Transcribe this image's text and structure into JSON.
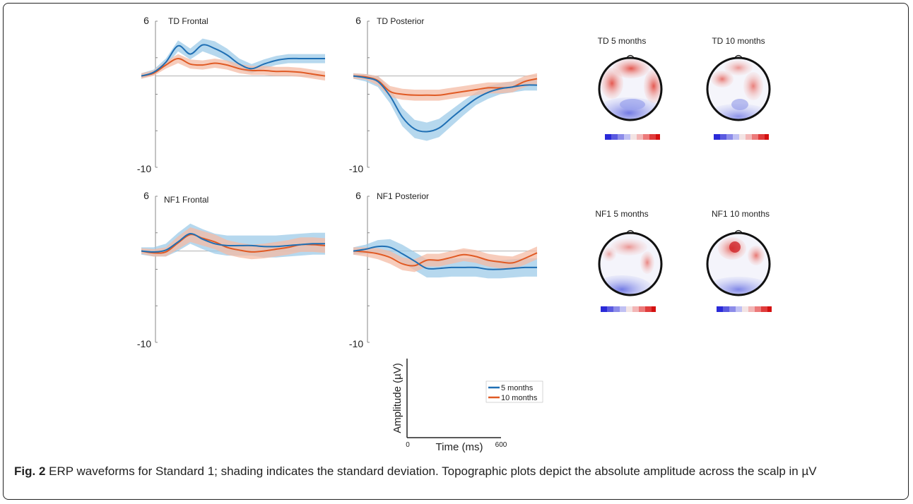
{
  "figure": {
    "caption_label": "Fig. 2",
    "caption_text": "ERP waveforms for Standard 1; shading indicates the standard deviation. Topographic plots depict the absolute amplitude across the scalp in µV"
  },
  "colors": {
    "five_months": "#1f6fb4",
    "five_months_band": "#9ecbe8",
    "ten_months": "#e05a24",
    "ten_months_band": "#f4bba4",
    "axis": "#888888"
  },
  "chart_data": [
    {
      "type": "line",
      "title": "TD Frontal",
      "ylim": [
        -10,
        6
      ],
      "tick_labels": [
        "6",
        "-10"
      ],
      "series": [
        {
          "name": "5 months",
          "x": [
            0,
            40,
            80,
            120,
            160,
            200,
            240,
            280,
            320,
            360,
            400,
            440,
            480,
            520,
            560,
            600
          ],
          "y": [
            0,
            0.4,
            1.5,
            3.3,
            2.4,
            3.4,
            3.0,
            2.3,
            1.3,
            0.8,
            1.3,
            1.7,
            1.9,
            1.9,
            1.9,
            1.9
          ],
          "sd": [
            0.3,
            0.3,
            0.4,
            0.6,
            0.6,
            0.7,
            0.8,
            0.7,
            0.6,
            0.5,
            0.5,
            0.5,
            0.5,
            0.5,
            0.5,
            0.5
          ]
        },
        {
          "name": "10 months",
          "x": [
            0,
            40,
            80,
            120,
            160,
            200,
            240,
            280,
            320,
            360,
            400,
            440,
            480,
            520,
            560,
            600
          ],
          "y": [
            0,
            0.3,
            1.2,
            1.9,
            1.3,
            1.2,
            1.4,
            1.2,
            0.8,
            0.6,
            0.6,
            0.5,
            0.5,
            0.4,
            0.2,
            0.0
          ],
          "sd": [
            0.3,
            0.3,
            0.4,
            0.5,
            0.5,
            0.5,
            0.5,
            0.5,
            0.5,
            0.5,
            0.5,
            0.5,
            0.5,
            0.5,
            0.5,
            0.5
          ]
        }
      ]
    },
    {
      "type": "line",
      "title": "TD Posterior",
      "ylim": [
        -10,
        6
      ],
      "tick_labels": [
        "6",
        "-10"
      ],
      "series": [
        {
          "name": "5 months",
          "x": [
            0,
            40,
            80,
            120,
            160,
            200,
            240,
            280,
            320,
            360,
            400,
            440,
            480,
            520,
            560,
            600
          ],
          "y": [
            0,
            -0.2,
            -0.6,
            -2.2,
            -4.5,
            -5.8,
            -6.1,
            -5.7,
            -4.6,
            -3.5,
            -2.5,
            -1.8,
            -1.4,
            -1.2,
            -1.0,
            -1.0
          ],
          "sd": [
            0.3,
            0.4,
            0.6,
            0.8,
            1.0,
            1.0,
            1.0,
            1.0,
            0.9,
            0.8,
            0.7,
            0.7,
            0.6,
            0.6,
            0.6,
            0.6
          ]
        },
        {
          "name": "10 months",
          "x": [
            0,
            40,
            80,
            120,
            160,
            200,
            240,
            280,
            320,
            360,
            400,
            440,
            480,
            520,
            560,
            600
          ],
          "y": [
            0,
            -0.1,
            -0.5,
            -1.7,
            -2.0,
            -2.1,
            -2.1,
            -2.1,
            -1.9,
            -1.7,
            -1.5,
            -1.3,
            -1.3,
            -1.2,
            -0.6,
            -0.3
          ],
          "sd": [
            0.3,
            0.3,
            0.5,
            0.6,
            0.6,
            0.6,
            0.6,
            0.6,
            0.6,
            0.6,
            0.6,
            0.6,
            0.6,
            0.6,
            0.6,
            0.6
          ]
        }
      ]
    },
    {
      "type": "line",
      "title": "NF1 Frontal",
      "ylim": [
        -10,
        6
      ],
      "tick_labels": [
        "6",
        "-10"
      ],
      "series": [
        {
          "name": "5 months",
          "x": [
            0,
            40,
            80,
            120,
            160,
            200,
            240,
            280,
            320,
            360,
            400,
            440,
            480,
            520,
            560,
            600
          ],
          "y": [
            0,
            -0.1,
            0.1,
            1.0,
            1.9,
            1.3,
            0.8,
            0.6,
            0.6,
            0.6,
            0.5,
            0.5,
            0.6,
            0.7,
            0.8,
            0.8
          ],
          "sd": [
            0.4,
            0.5,
            0.7,
            1.0,
            1.1,
            1.1,
            1.1,
            1.1,
            1.1,
            1.1,
            1.2,
            1.2,
            1.2,
            1.2,
            1.2,
            1.2
          ]
        },
        {
          "name": "10 months",
          "x": [
            0,
            40,
            80,
            120,
            160,
            200,
            240,
            280,
            320,
            360,
            400,
            440,
            480,
            520,
            560,
            600
          ],
          "y": [
            0,
            -0.2,
            -0.1,
            0.9,
            1.8,
            1.4,
            1.0,
            0.4,
            0.1,
            -0.1,
            0.0,
            0.2,
            0.4,
            0.7,
            0.7,
            0.6
          ],
          "sd": [
            0.3,
            0.4,
            0.5,
            0.7,
            0.8,
            0.8,
            0.8,
            0.8,
            0.8,
            0.8,
            0.8,
            0.8,
            0.8,
            0.8,
            0.8,
            0.8
          ]
        }
      ]
    },
    {
      "type": "line",
      "title": "NF1 Posterior",
      "ylim": [
        -10,
        6
      ],
      "tick_labels": [
        "6",
        "-10"
      ],
      "series": [
        {
          "name": "5 months",
          "x": [
            0,
            40,
            80,
            120,
            160,
            200,
            240,
            280,
            320,
            360,
            400,
            440,
            480,
            520,
            560,
            600
          ],
          "y": [
            0,
            0.2,
            0.5,
            0.4,
            -0.3,
            -1.1,
            -1.9,
            -1.9,
            -1.8,
            -1.8,
            -1.8,
            -2.0,
            -2.0,
            -1.9,
            -1.8,
            -1.8
          ],
          "sd": [
            0.4,
            0.5,
            0.7,
            0.9,
            1.0,
            1.0,
            1.0,
            1.0,
            1.0,
            1.0,
            1.0,
            1.0,
            1.0,
            1.0,
            1.0,
            1.0
          ]
        },
        {
          "name": "10 months",
          "x": [
            0,
            40,
            80,
            120,
            160,
            200,
            240,
            280,
            320,
            360,
            400,
            440,
            480,
            520,
            560,
            600
          ],
          "y": [
            0,
            -0.1,
            -0.3,
            -0.7,
            -1.4,
            -1.6,
            -1.0,
            -1.0,
            -0.7,
            -0.4,
            -0.6,
            -1.0,
            -1.2,
            -1.3,
            -0.8,
            -0.2
          ],
          "sd": [
            0.4,
            0.5,
            0.6,
            0.7,
            0.7,
            0.7,
            0.7,
            0.7,
            0.7,
            0.7,
            0.7,
            0.7,
            0.7,
            0.7,
            0.7,
            0.7
          ]
        }
      ]
    }
  ],
  "legend_axes": {
    "ylabel": "Amplitude (µV)",
    "xlabel": "Time (ms)",
    "x_min": "0",
    "x_max": "600",
    "entries": [
      "5 months",
      "10 months"
    ]
  },
  "topo_maps": [
    {
      "title": "TD 5 months",
      "scheme": "blue-red"
    },
    {
      "title": "TD 10 months",
      "scheme": "blue-red"
    },
    {
      "title": "NF1 5 months",
      "scheme": "blue-red"
    },
    {
      "title": "NF1 10 months",
      "scheme": "blue-red"
    }
  ]
}
